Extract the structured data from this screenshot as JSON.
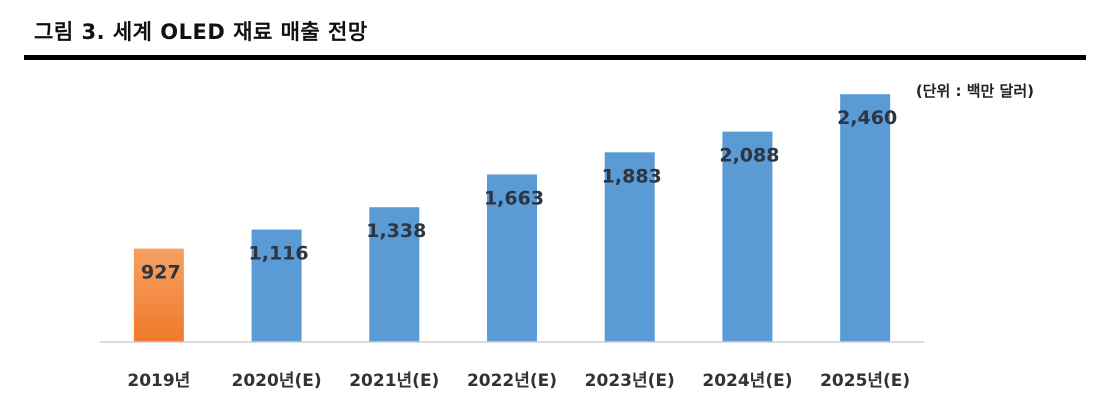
{
  "page": {
    "title": "그림 3. 세계 OLED 재료 매출 전망",
    "unit": "(단위 : 백만 달러)"
  },
  "colors": {
    "actual": "#f07a2a",
    "actual_light": "#f5a063",
    "forecast": "#5b9bd5",
    "axis": "#cfcfcf"
  },
  "chart_data": {
    "type": "bar",
    "title": "그림 3. 세계 OLED 재료 매출 전망",
    "ylabel": "",
    "xlabel": "",
    "categories": [
      "2019년",
      "2020년(E)",
      "2021년(E)",
      "2022년(E)",
      "2023년(E)",
      "2024년(E)",
      "2025년(E)"
    ],
    "values": [
      927,
      1116,
      1338,
      1663,
      1883,
      2088,
      2460
    ],
    "value_labels": [
      "927",
      "1,116",
      "1,338",
      "1,663",
      "1,883",
      "2,088",
      "2,460"
    ],
    "highlight_index": 0,
    "ylim": [
      0,
      2700
    ],
    "grid": false,
    "legend": "none"
  }
}
